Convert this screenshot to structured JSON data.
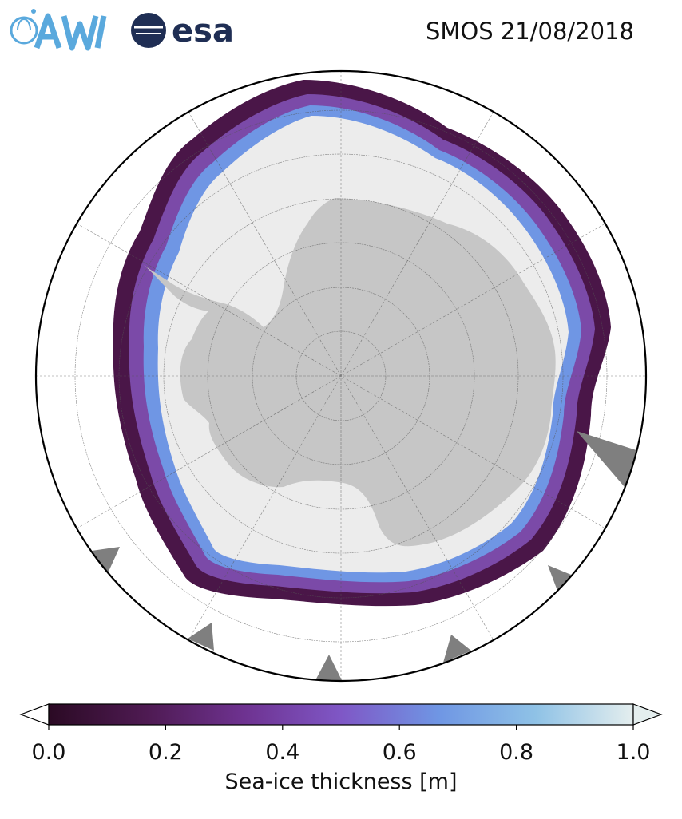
{
  "header": {
    "logo_awi": "AWI",
    "logo_esa": "esa",
    "title": "SMOS 21/08/2018"
  },
  "colors": {
    "land": "#c6c6c6",
    "thick_ice": "#ececec",
    "ice_edge_dark": "#4a1648",
    "ice_edge_mid": "#7b4aa8",
    "ice_edge_light": "#6a9ee6",
    "mask_gray": "#7f7f7f",
    "awi_blue": "#5aa9dd",
    "esa_navy": "#1f2e54"
  },
  "icons": [
    "awi-logo-icon",
    "esa-logo-icon"
  ],
  "colorbar": {
    "label": "Sea-ice thickness [m]",
    "min": 0.0,
    "max": 1.0,
    "ticks": [
      "0.0",
      "0.2",
      "0.4",
      "0.6",
      "0.8",
      "1.0"
    ],
    "extend": "both",
    "colormap": [
      "#2b0a24",
      "#4e1a52",
      "#6e3290",
      "#7f57c6",
      "#6f96e4",
      "#8fc2e6",
      "#e4eeee"
    ]
  }
}
